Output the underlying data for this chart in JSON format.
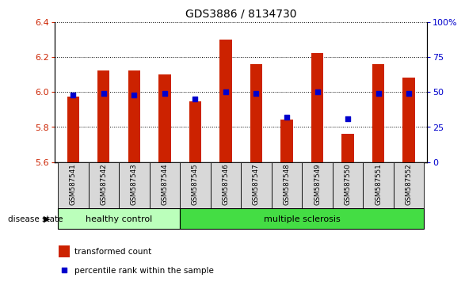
{
  "title": "GDS3886 / 8134730",
  "samples": [
    "GSM587541",
    "GSM587542",
    "GSM587543",
    "GSM587544",
    "GSM587545",
    "GSM587546",
    "GSM587547",
    "GSM587548",
    "GSM587549",
    "GSM587550",
    "GSM587551",
    "GSM587552"
  ],
  "bar_values": [
    5.975,
    6.12,
    6.12,
    6.1,
    5.945,
    6.3,
    6.16,
    5.84,
    6.22,
    5.76,
    6.16,
    6.08
  ],
  "bar_base": 5.6,
  "blue_dot_percentile": [
    48,
    49,
    48,
    49,
    45,
    50,
    49,
    32,
    50,
    31,
    49,
    49
  ],
  "ylim": [
    5.6,
    6.4
  ],
  "yticks": [
    5.6,
    5.8,
    6.0,
    6.2,
    6.4
  ],
  "right_yticks": [
    0,
    25,
    50,
    75,
    100
  ],
  "right_ylabels": [
    "0",
    "25",
    "50",
    "75",
    "100%"
  ],
  "bar_color": "#cc2200",
  "dot_color": "#0000cc",
  "healthy_label": "healthy control",
  "ms_label": "multiple sclerosis",
  "healthy_color": "#bbffbb",
  "ms_color": "#44dd44",
  "disease_label": "disease state",
  "legend_bar_label": "transformed count",
  "legend_dot_label": "percentile rank within the sample",
  "title_fontsize": 10,
  "tick_fontsize": 8,
  "axis_label_color_left": "#cc2200",
  "axis_label_color_right": "#0000cc",
  "bar_width": 0.4
}
